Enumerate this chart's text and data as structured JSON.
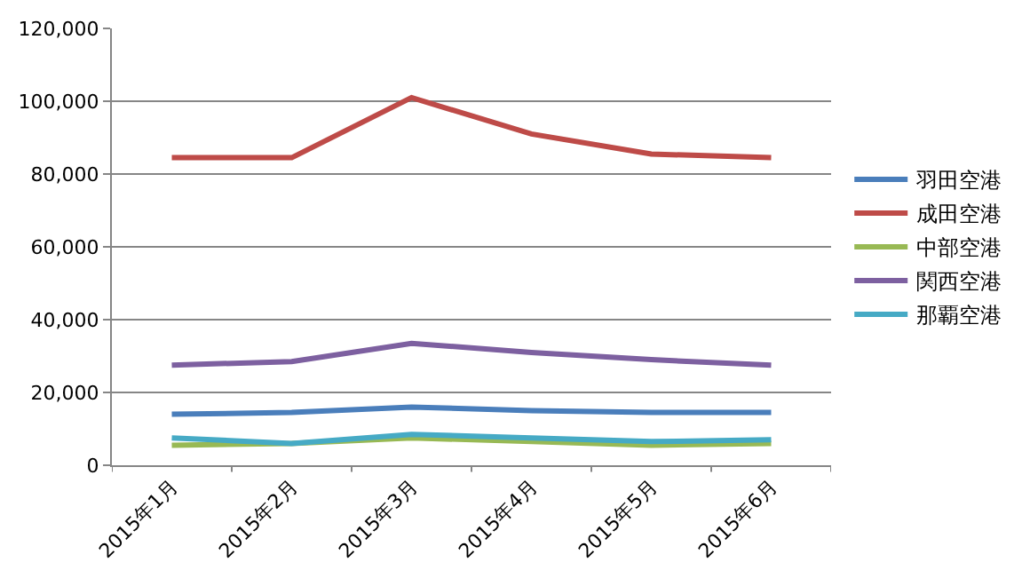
{
  "chart_data": {
    "type": "line",
    "categories": [
      "2015年1月",
      "2015年2月",
      "2015年3月",
      "2015年4月",
      "2015年5月",
      "2015年6月"
    ],
    "series": [
      {
        "name": "羽田空港",
        "color": "#4a7ebb",
        "values": [
          14000,
          14500,
          16000,
          15000,
          14500,
          14500
        ]
      },
      {
        "name": "成田空港",
        "color": "#be4b48",
        "values": [
          84500,
          84500,
          101000,
          91000,
          85500,
          84500
        ]
      },
      {
        "name": "中部空港",
        "color": "#98b954",
        "values": [
          5500,
          6000,
          7500,
          6500,
          5500,
          6000
        ]
      },
      {
        "name": "関西空港",
        "color": "#7d60a0",
        "values": [
          27500,
          28500,
          33500,
          31000,
          29000,
          27500
        ]
      },
      {
        "name": "那覇空港",
        "color": "#46aac5",
        "values": [
          7500,
          6000,
          8500,
          7500,
          6500,
          7000
        ]
      }
    ],
    "ylim": [
      0,
      120000
    ],
    "yticks": [
      {
        "value": 0,
        "label": "0"
      },
      {
        "value": 20000,
        "label": "20,000"
      },
      {
        "value": 40000,
        "label": "40,000"
      },
      {
        "value": 60000,
        "label": "60,000"
      },
      {
        "value": 80000,
        "label": "80,000"
      },
      {
        "value": 100000,
        "label": "100,000"
      },
      {
        "value": 120000,
        "label": "120,000"
      }
    ],
    "grid": "y",
    "legend": "right",
    "marker": "none",
    "line_style": "solid"
  }
}
